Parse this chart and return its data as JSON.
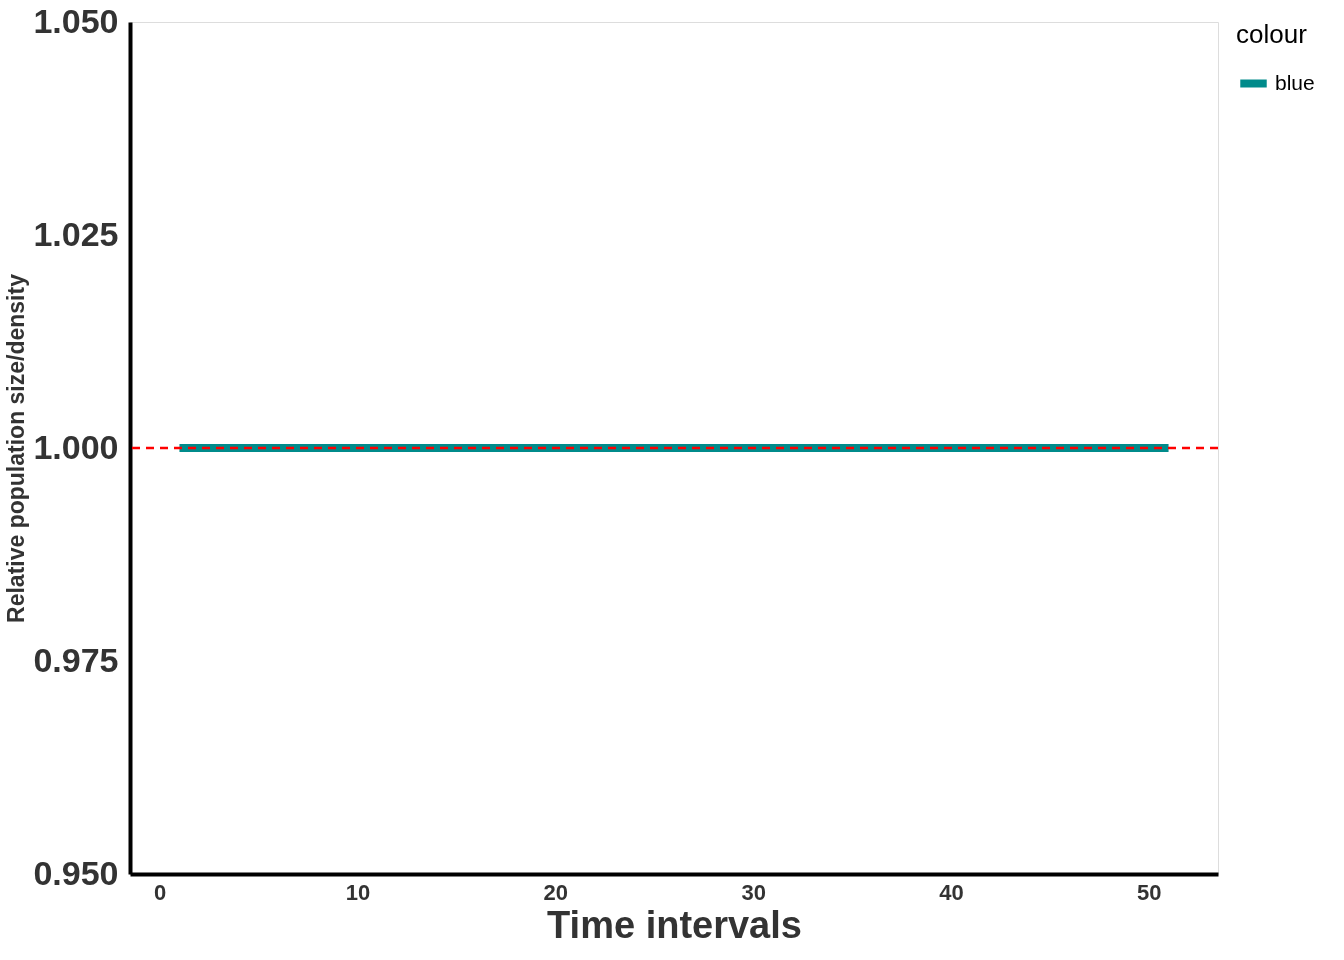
{
  "chart_data": {
    "type": "line",
    "xlabel": "Time intervals",
    "ylabel": "Relative population size/density",
    "legend_title": "colour",
    "x": [
      1,
      51
    ],
    "series": [
      {
        "name": "blue",
        "color": "#008b8b",
        "values": [
          1,
          1
        ]
      }
    ],
    "xlim": [
      -1.5,
      53.5
    ],
    "xticks": [
      0,
      10,
      20,
      30,
      40,
      50
    ],
    "ylim": [
      0.95,
      1.05
    ],
    "yticks": [
      {
        "value": 0.95,
        "label": "0.950"
      },
      {
        "value": 0.975,
        "label": "0.975"
      },
      {
        "value": 1.0,
        "label": "1.000"
      },
      {
        "value": 1.025,
        "label": "1.025"
      },
      {
        "value": 1.05,
        "label": "1.050"
      }
    ],
    "ref_lines": [
      {
        "axis": "y",
        "value": 1.0,
        "color": "#ff0000",
        "line_style": "dashed"
      }
    ],
    "grid": false,
    "legend": "right",
    "line_style": "solid",
    "marker": "none"
  }
}
